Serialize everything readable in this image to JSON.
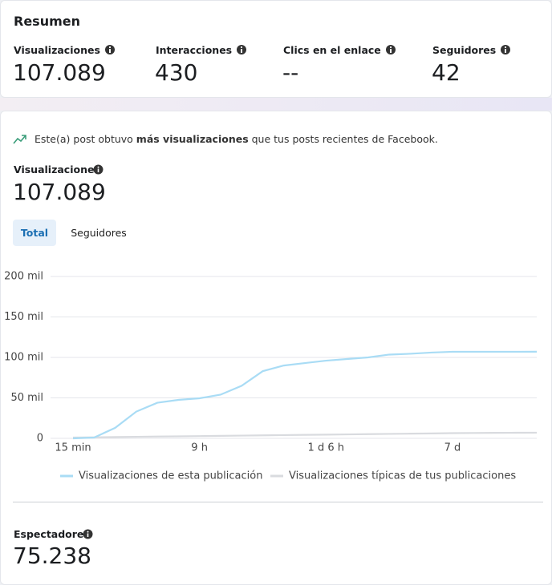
{
  "summary": {
    "title": "Resumen",
    "metrics": [
      {
        "label": "Visualizaciones",
        "value": "107.089"
      },
      {
        "label": "Interacciones",
        "value": "430"
      },
      {
        "label": "Clics en el enlace",
        "value": "--"
      },
      {
        "label": "Seguidores",
        "value": "42"
      }
    ]
  },
  "post": {
    "insight": {
      "before": "Este(a) post obtuvo",
      "bold": "más visualizaciones",
      "after": "que tus posts recientes de Facebook."
    },
    "metric": {
      "label": "Visualizaciones",
      "value": "107.089"
    },
    "tabs": [
      "Total",
      "Seguidores"
    ],
    "spectators": {
      "label": "Espectadores",
      "value": "75.238"
    }
  },
  "chart_data": {
    "type": "line",
    "categories": [
      "15 min",
      null,
      null,
      null,
      null,
      null,
      "9 h",
      null,
      null,
      null,
      null,
      null,
      "1 d 6 h",
      null,
      null,
      null,
      null,
      null,
      "7 d",
      null,
      null,
      null,
      null
    ],
    "series": [
      {
        "name": "Visualizaciones de esta publicación",
        "color": "#a9dcf5",
        "values": [
          0,
          1000,
          13000,
          33000,
          44000,
          47500,
          49500,
          54000,
          65000,
          83000,
          90000,
          93000,
          96000,
          98000,
          100000,
          103500,
          104500,
          106000,
          107000,
          107000,
          107000,
          107000,
          107089
        ]
      },
      {
        "name": "Visualizaciones típicas de tus publicaciones",
        "color": "#d9dbdf",
        "values": [
          1000,
          1300,
          1600,
          1900,
          2200,
          2500,
          2800,
          3100,
          3400,
          3700,
          4000,
          4300,
          4600,
          4900,
          5200,
          5500,
          5800,
          6100,
          6400,
          6600,
          6800,
          6900,
          7000
        ]
      }
    ],
    "ylim": [
      0,
      200000
    ],
    "yticks": [
      0,
      {
        "value": 50000,
        "label": "50 mil"
      },
      {
        "value": 100000,
        "label": "100 mil"
      },
      {
        "value": 150000,
        "label": "150 mil"
      },
      {
        "value": 200000,
        "label": "200 mil"
      }
    ],
    "grid": true
  }
}
